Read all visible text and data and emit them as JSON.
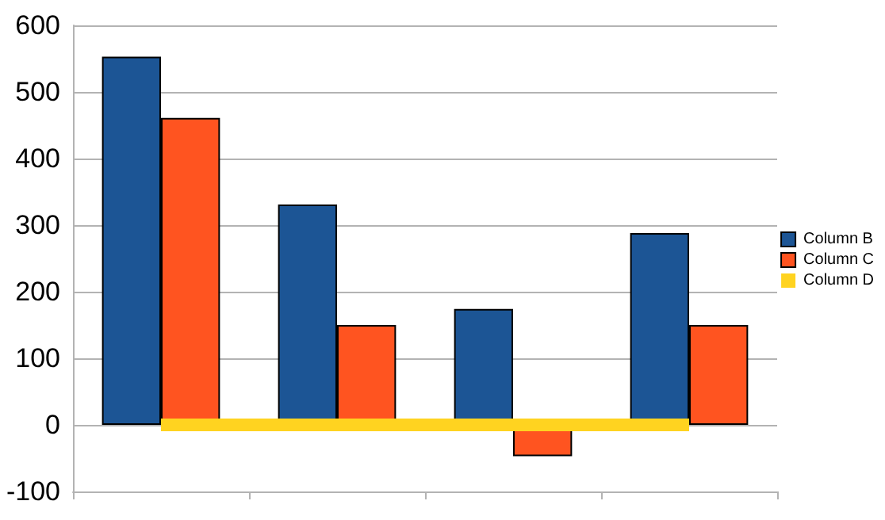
{
  "chart_data": {
    "type": "bar",
    "categories": [
      null,
      null,
      null,
      null
    ],
    "series": [
      {
        "name": "Column B",
        "color": "#1c5595",
        "values": [
          553,
          331,
          174,
          288
        ]
      },
      {
        "name": "Column C",
        "color": "#ff5420",
        "values": [
          461,
          150,
          -47,
          150
        ]
      },
      {
        "name": "Column D",
        "color": "#ffd320",
        "type": "line",
        "values": [
          0,
          0,
          0,
          0
        ]
      }
    ],
    "ylim": [
      -100,
      600
    ],
    "yticks": [
      -100,
      0,
      100,
      200,
      300,
      400,
      500,
      600
    ],
    "grid": "y",
    "legend": "right",
    "marker": "none"
  }
}
